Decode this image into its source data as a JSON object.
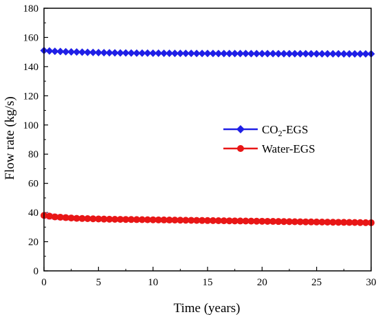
{
  "chart_data": {
    "type": "line",
    "xlabel": "Time (years)",
    "ylabel": "Flow rate (kg/s)",
    "xlim": [
      0,
      30
    ],
    "ylim": [
      0,
      180
    ],
    "xticks": [
      0,
      5,
      10,
      15,
      20,
      25,
      30
    ],
    "yticks": [
      0,
      20,
      40,
      60,
      80,
      100,
      120,
      140,
      160,
      180
    ],
    "grid": false,
    "legend_position": "center-right",
    "series": [
      {
        "name": "CO2-EGS",
        "name_main": "CO",
        "name_sub": "2",
        "name_rest": "-EGS",
        "color": "#1f1fe6",
        "marker": "diamond",
        "x": [
          0,
          1,
          2,
          3,
          4,
          5,
          6,
          8,
          10,
          12,
          15,
          20,
          25,
          30
        ],
        "y": [
          151,
          150.5,
          150.2,
          150,
          149.8,
          149.6,
          149.5,
          149.3,
          149.2,
          149.1,
          149,
          148.9,
          148.8,
          148.7
        ]
      },
      {
        "name": "Water-EGS",
        "color": "#e81616",
        "marker": "circle",
        "x": [
          0,
          1,
          2,
          3,
          4,
          5,
          6,
          8,
          10,
          12,
          15,
          20,
          25,
          30
        ],
        "y": [
          38,
          37,
          36.5,
          36,
          35.8,
          35.6,
          35.4,
          35.2,
          35,
          34.8,
          34.5,
          34,
          33.5,
          33
        ]
      }
    ]
  }
}
